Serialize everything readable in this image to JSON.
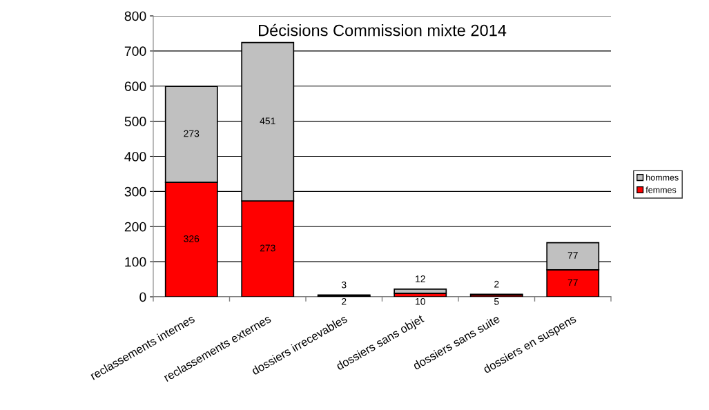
{
  "chart_data": {
    "type": "bar",
    "title": "Décisions Commission mixte 2014",
    "stacked": true,
    "categories": [
      "reclassements internes",
      "reclassements externes",
      "dossiers irrecevables",
      "dossiers sans objet",
      "dossiers sans suite",
      "dossiers en suspens"
    ],
    "series": [
      {
        "name": "femmes",
        "color": "#ff0000",
        "values": [
          326,
          273,
          2,
          10,
          5,
          77
        ]
      },
      {
        "name": "hommes",
        "color": "#c0c0c0",
        "values": [
          273,
          451,
          3,
          12,
          2,
          77
        ]
      }
    ],
    "ylim": [
      0,
      800
    ],
    "yticks": [
      0,
      100,
      200,
      300,
      400,
      500,
      600,
      700,
      800
    ],
    "grid": "y",
    "legend": "right",
    "data_labels": true
  }
}
